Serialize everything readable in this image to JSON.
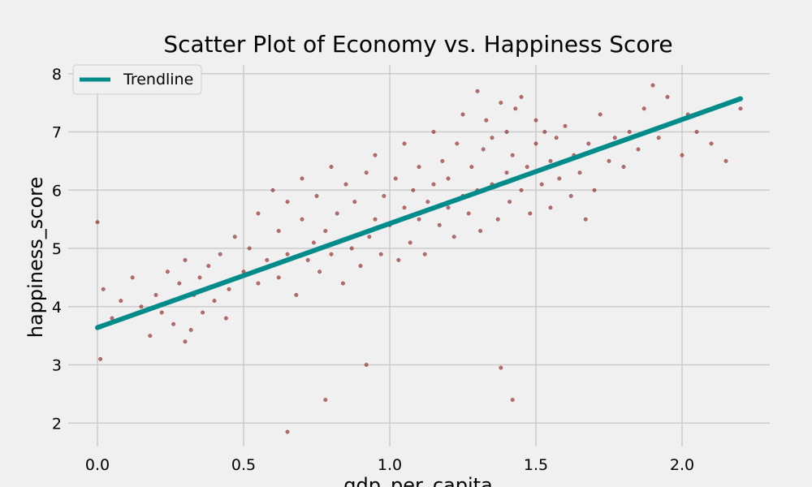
{
  "chart_data": {
    "type": "scatter",
    "title": "Scatter Plot of Economy vs. Happiness Score",
    "xlabel": "gdp_per_capita",
    "ylabel": "happiness_score",
    "xlim": [
      -0.1,
      2.3
    ],
    "ylim": [
      1.6,
      8.15
    ],
    "xticks": [
      0.0,
      0.5,
      1.0,
      1.5,
      2.0
    ],
    "xtick_labels": [
      "0.0",
      "0.5",
      "1.0",
      "1.5",
      "2.0"
    ],
    "yticks": [
      2,
      3,
      4,
      5,
      6,
      7,
      8
    ],
    "ytick_labels": [
      "2",
      "3",
      "4",
      "5",
      "6",
      "7",
      "8"
    ],
    "grid": true,
    "legend": {
      "position": "top-left",
      "entries": [
        "Trendline"
      ]
    },
    "colors": {
      "background": "#f0f0f0",
      "grid": "#cbcbcb",
      "points": "#8b1a1a",
      "trendline": "#008b8b"
    },
    "trendline": {
      "name": "Trendline",
      "x": [
        0.0,
        2.2
      ],
      "y": [
        3.64,
        7.57
      ]
    },
    "series": [
      {
        "kind": "points",
        "x": [
          0.0,
          0.01,
          0.02,
          0.05,
          0.08,
          0.12,
          0.15,
          0.18,
          0.2,
          0.22,
          0.24,
          0.26,
          0.28,
          0.3,
          0.3,
          0.32,
          0.33,
          0.35,
          0.36,
          0.38,
          0.4,
          0.42,
          0.44,
          0.45,
          0.47,
          0.5,
          0.52,
          0.55,
          0.55,
          0.58,
          0.6,
          0.62,
          0.62,
          0.65,
          0.65,
          0.68,
          0.7,
          0.7,
          0.72,
          0.74,
          0.75,
          0.76,
          0.78,
          0.8,
          0.8,
          0.82,
          0.84,
          0.85,
          0.87,
          0.88,
          0.9,
          0.92,
          0.93,
          0.95,
          0.95,
          0.97,
          0.98,
          1.0,
          1.02,
          1.03,
          1.05,
          1.05,
          1.07,
          1.08,
          1.1,
          1.1,
          1.12,
          1.13,
          1.15,
          1.15,
          1.17,
          1.18,
          1.2,
          1.2,
          1.22,
          1.23,
          1.25,
          1.25,
          1.27,
          1.28,
          1.3,
          1.3,
          1.31,
          1.32,
          1.33,
          1.35,
          1.35,
          1.37,
          1.38,
          1.4,
          1.4,
          1.41,
          1.42,
          1.43,
          1.45,
          1.45,
          1.47,
          1.48,
          1.5,
          1.5,
          1.52,
          1.53,
          1.55,
          1.55,
          1.57,
          1.58,
          1.6,
          1.62,
          1.63,
          1.65,
          1.67,
          1.68,
          1.7,
          1.72,
          1.75,
          1.77,
          1.8,
          1.82,
          1.85,
          1.87,
          1.9,
          1.92,
          1.95,
          2.0,
          2.02,
          2.05,
          2.1,
          2.15,
          2.2,
          0.65,
          0.78,
          0.92,
          1.38,
          1.42
        ],
        "y": [
          5.45,
          3.1,
          4.3,
          3.8,
          4.1,
          4.5,
          4.0,
          3.5,
          4.2,
          3.9,
          4.6,
          3.7,
          4.4,
          3.4,
          4.8,
          3.6,
          4.2,
          4.5,
          3.9,
          4.7,
          4.1,
          4.9,
          3.8,
          4.3,
          5.2,
          4.6,
          5.0,
          4.4,
          5.6,
          4.8,
          6.0,
          4.5,
          5.3,
          4.9,
          5.8,
          4.2,
          5.5,
          6.2,
          4.8,
          5.1,
          5.9,
          4.6,
          5.3,
          6.4,
          4.9,
          5.6,
          4.4,
          6.1,
          5.0,
          5.8,
          4.7,
          6.3,
          5.2,
          5.5,
          6.6,
          4.9,
          5.9,
          5.4,
          6.2,
          4.8,
          5.7,
          6.8,
          5.1,
          6.0,
          5.5,
          6.4,
          4.9,
          5.8,
          6.1,
          7.0,
          5.4,
          6.5,
          5.7,
          6.2,
          5.2,
          6.8,
          5.9,
          7.3,
          5.6,
          6.4,
          6.0,
          7.7,
          5.3,
          6.7,
          7.2,
          6.1,
          6.9,
          5.5,
          7.5,
          6.3,
          7.0,
          5.8,
          6.6,
          7.4,
          6.0,
          7.6,
          6.4,
          5.6,
          6.8,
          7.2,
          6.1,
          7.0,
          6.5,
          5.7,
          6.9,
          6.2,
          7.1,
          5.9,
          6.6,
          6.3,
          5.5,
          6.8,
          6.0,
          7.3,
          6.5,
          6.9,
          6.4,
          7.0,
          6.7,
          7.4,
          7.8,
          6.9,
          7.6,
          6.6,
          7.3,
          7.0,
          6.8,
          6.5,
          7.4,
          1.85,
          2.4,
          3.0,
          2.95,
          2.4
        ]
      }
    ]
  }
}
